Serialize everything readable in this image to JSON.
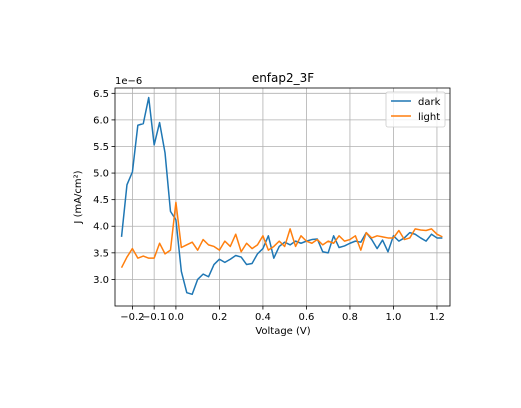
{
  "chart_data": {
    "type": "line",
    "title": "enfap2_3F",
    "xlabel": "Voltage (V)",
    "ylabel": "J (mA/cm²)",
    "offset_text": "1e−6",
    "xlim": [
      -0.28,
      1.26
    ],
    "ylim": [
      2.5,
      6.6
    ],
    "xticks": [
      -0.2,
      -0.1,
      0.0,
      0.2,
      0.4,
      0.6,
      0.8,
      1.0,
      1.2
    ],
    "xtick_labels": [
      "−0.2",
      "−0.1",
      "0.0",
      "0.2",
      "0.4",
      "0.6",
      "0.8",
      "1.0",
      "1.2"
    ],
    "yticks": [
      3.0,
      3.5,
      4.0,
      4.5,
      5.0,
      5.5,
      6.0,
      6.5
    ],
    "ytick_labels": [
      "3.0",
      "3.5",
      "4.0",
      "4.5",
      "5.0",
      "5.5",
      "6.0",
      "6.5"
    ],
    "grid": true,
    "legend_position": "top-right",
    "series": [
      {
        "name": "dark",
        "color": "#1f77b4",
        "x": [
          -0.25,
          -0.225,
          -0.2,
          -0.175,
          -0.15,
          -0.125,
          -0.1,
          -0.075,
          -0.05,
          -0.025,
          0.0,
          0.025,
          0.05,
          0.075,
          0.1,
          0.125,
          0.15,
          0.175,
          0.2,
          0.225,
          0.25,
          0.275,
          0.3,
          0.325,
          0.35,
          0.375,
          0.4,
          0.425,
          0.45,
          0.475,
          0.5,
          0.525,
          0.55,
          0.575,
          0.6,
          0.625,
          0.65,
          0.675,
          0.7,
          0.725,
          0.75,
          0.775,
          0.8,
          0.825,
          0.85,
          0.875,
          0.9,
          0.925,
          0.95,
          0.975,
          1.0,
          1.025,
          1.05,
          1.075,
          1.1,
          1.125,
          1.15,
          1.175,
          1.2,
          1.225
        ],
        "y": [
          3.8,
          4.78,
          5.02,
          5.9,
          5.93,
          6.42,
          5.53,
          5.95,
          5.38,
          4.28,
          4.12,
          3.15,
          2.75,
          2.72,
          3.0,
          3.1,
          3.05,
          3.28,
          3.38,
          3.32,
          3.38,
          3.45,
          3.42,
          3.28,
          3.3,
          3.48,
          3.58,
          3.82,
          3.4,
          3.62,
          3.7,
          3.65,
          3.72,
          3.68,
          3.72,
          3.75,
          3.76,
          3.52,
          3.5,
          3.82,
          3.6,
          3.63,
          3.68,
          3.72,
          3.7,
          3.88,
          3.75,
          3.58,
          3.74,
          3.52,
          3.82,
          3.72,
          3.78,
          3.88,
          3.85,
          3.78,
          3.72,
          3.85,
          3.78,
          3.78
        ]
      },
      {
        "name": "light",
        "color": "#ff7f0e",
        "x": [
          -0.25,
          -0.225,
          -0.2,
          -0.175,
          -0.15,
          -0.125,
          -0.1,
          -0.075,
          -0.05,
          -0.025,
          0.0,
          0.025,
          0.05,
          0.075,
          0.1,
          0.125,
          0.15,
          0.175,
          0.2,
          0.225,
          0.25,
          0.275,
          0.3,
          0.325,
          0.35,
          0.375,
          0.4,
          0.425,
          0.45,
          0.475,
          0.5,
          0.525,
          0.55,
          0.575,
          0.6,
          0.625,
          0.65,
          0.675,
          0.7,
          0.725,
          0.75,
          0.775,
          0.8,
          0.825,
          0.85,
          0.875,
          0.9,
          0.925,
          0.95,
          0.975,
          1.0,
          1.025,
          1.05,
          1.075,
          1.1,
          1.125,
          1.15,
          1.175,
          1.2,
          1.225
        ],
        "y": [
          3.22,
          3.42,
          3.58,
          3.4,
          3.44,
          3.4,
          3.4,
          3.68,
          3.48,
          3.55,
          4.45,
          3.6,
          3.65,
          3.7,
          3.55,
          3.75,
          3.65,
          3.62,
          3.55,
          3.72,
          3.62,
          3.85,
          3.52,
          3.68,
          3.58,
          3.65,
          3.82,
          3.55,
          3.62,
          3.72,
          3.62,
          3.95,
          3.62,
          3.82,
          3.72,
          3.68,
          3.75,
          3.65,
          3.72,
          3.68,
          3.82,
          3.72,
          3.75,
          3.82,
          3.55,
          3.88,
          3.78,
          3.82,
          3.8,
          3.78,
          3.78,
          3.92,
          3.75,
          3.78,
          3.95,
          3.93,
          3.92,
          3.95,
          3.85,
          3.8
        ]
      }
    ]
  }
}
